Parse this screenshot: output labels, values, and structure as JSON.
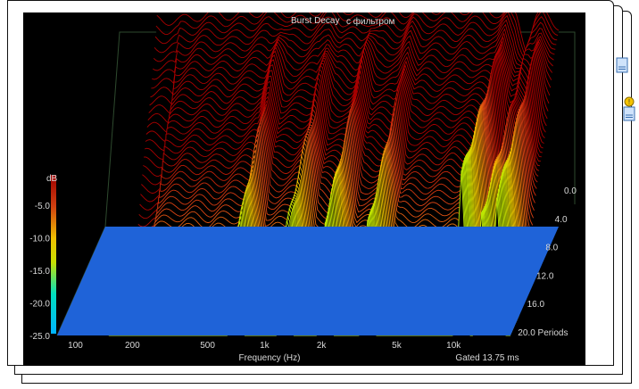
{
  "chart_data": {
    "type": "waterfall",
    "title": "Burst Decay",
    "subtitle": "с фильтром",
    "xlabel": "Frequency (Hz)",
    "zlabel": "dB",
    "x_ticks": [
      "100",
      "200",
      "500",
      "1k",
      "2k",
      "5k",
      "10k"
    ],
    "y_ticks": [
      "-5.0",
      "-10.0",
      "-15.0",
      "-20.0",
      "-25.0"
    ],
    "z_ticks": [
      "0.0",
      "4.0",
      "8.0",
      "12.0",
      "16.0",
      "20.0 Periods"
    ],
    "gated_label": "Gated 13.75 ms",
    "xlim": [
      80,
      20000
    ],
    "ylim": [
      -25,
      0
    ],
    "periods_range": [
      0,
      20
    ],
    "front_slice_profile": {
      "x": [
        150,
        200,
        260,
        330,
        400,
        500,
        600,
        700,
        850,
        1000,
        1200,
        1500,
        1800,
        2100,
        2500,
        3000,
        3600,
        4300,
        5000,
        6000,
        7000,
        8000,
        9000,
        10000,
        11000,
        12000,
        13500,
        15000,
        16500,
        18000,
        20000
      ],
      "db": [
        -1.8,
        -1.9,
        -1.3,
        -1.2,
        -1.4,
        -1.0,
        -0.6,
        -0.9,
        -1.2,
        -1.0,
        -0.3,
        -0.6,
        -1.2,
        -1.0,
        -0.7,
        -1.0,
        -0.8,
        -0.6,
        -0.7,
        -0.8,
        -0.5,
        -0.6,
        -0.9,
        -1.2,
        -0.8,
        -1.4,
        -5.0,
        -2.0,
        -0.7,
        -1.4,
        -2.6
      ]
    }
  }
}
